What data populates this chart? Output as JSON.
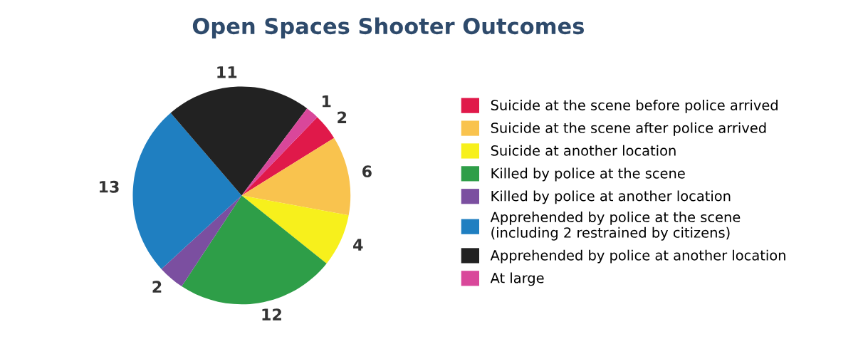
{
  "chart_data": {
    "type": "pie",
    "title": "Open Spaces Shooter Outcomes",
    "categories": [
      "Suicide at the scene before police arrived",
      "Suicide at the scene after police arrived",
      "Suicide at another location",
      "Killed by police at the scene",
      "Killed by police at another location",
      "Apprehended by police at the scene\n(including 2 restrained by citizens)",
      "Apprehended by police at another location",
      "At large"
    ],
    "values": [
      2,
      6,
      4,
      12,
      2,
      13,
      11,
      1
    ],
    "colors": [
      "#e0194a",
      "#f9c34e",
      "#f7f01c",
      "#2e9e48",
      "#7b4fa0",
      "#1f7fc1",
      "#222222",
      "#d9479a"
    ],
    "data_labels": true,
    "legend": "right"
  }
}
